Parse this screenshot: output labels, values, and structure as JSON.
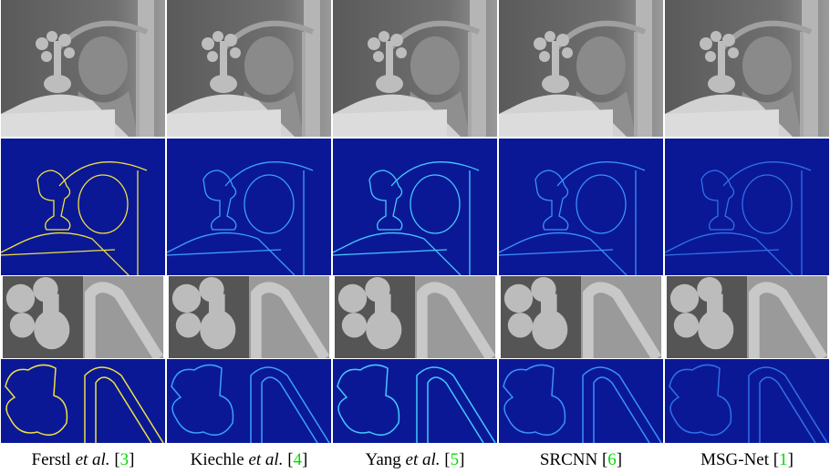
{
  "columns": [
    {
      "caption": [
        {
          "text": "Ferstl "
        },
        {
          "text": "et al.",
          "style": "italic"
        },
        {
          "text": " ["
        },
        {
          "text": "3",
          "style": "link"
        },
        {
          "text": "]"
        }
      ]
    },
    {
      "caption": [
        {
          "text": "Kiechle "
        },
        {
          "text": "et al.",
          "style": "italic"
        },
        {
          "text": " ["
        },
        {
          "text": "4",
          "style": "link"
        },
        {
          "text": "]"
        }
      ]
    },
    {
      "caption": [
        {
          "text": "Yang "
        },
        {
          "text": "et al.",
          "style": "italic"
        },
        {
          "text": " ["
        },
        {
          "text": "5",
          "style": "link"
        },
        {
          "text": "]"
        }
      ]
    },
    {
      "caption": [
        {
          "text": "SRCNN ["
        },
        {
          "text": "6",
          "style": "link"
        },
        {
          "text": "]"
        }
      ]
    },
    {
      "caption": [
        {
          "text": "MSG-Net ["
        },
        {
          "text": "1",
          "style": "link"
        },
        {
          "text": "]"
        }
      ]
    }
  ]
}
